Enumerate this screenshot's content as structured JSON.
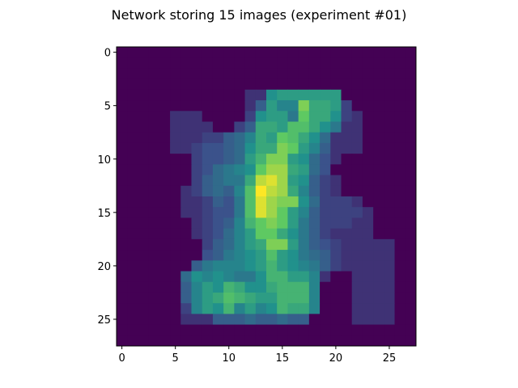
{
  "chart_data": {
    "type": "heatmap",
    "title": "Network storing 15 images (experiment #01)",
    "rows": 28,
    "cols": 28,
    "xlim": [
      -0.5,
      27.5
    ],
    "ylim": [
      27.5,
      -0.5
    ],
    "y_axis_inverted": true,
    "grid": false,
    "colormap": "viridis",
    "x_ticks": [
      0,
      5,
      10,
      15,
      20,
      25
    ],
    "y_ticks": [
      0,
      5,
      10,
      15,
      20,
      25
    ],
    "value_range": [
      0,
      1
    ],
    "values": [
      [
        0,
        0,
        0,
        0,
        0,
        0,
        0,
        0,
        0,
        0,
        0,
        0,
        0,
        0,
        0,
        0,
        0,
        0,
        0,
        0,
        0,
        0,
        0,
        0,
        0,
        0,
        0,
        0
      ],
      [
        0,
        0,
        0,
        0,
        0,
        0,
        0,
        0,
        0,
        0,
        0,
        0,
        0,
        0,
        0,
        0,
        0,
        0,
        0,
        0,
        0,
        0,
        0,
        0,
        0,
        0,
        0,
        0
      ],
      [
        0,
        0,
        0,
        0,
        0,
        0,
        0,
        0,
        0,
        0,
        0,
        0,
        0,
        0,
        0,
        0,
        0,
        0,
        0,
        0,
        0,
        0,
        0,
        0,
        0,
        0,
        0,
        0
      ],
      [
        0,
        0,
        0,
        0,
        0,
        0,
        0,
        0,
        0,
        0,
        0,
        0,
        0,
        0,
        0,
        0,
        0,
        0,
        0,
        0,
        0,
        0,
        0,
        0,
        0,
        0,
        0,
        0
      ],
      [
        0,
        0,
        0,
        0,
        0,
        0,
        0,
        0,
        0,
        0,
        0,
        0,
        0.15,
        0.15,
        0.5,
        0.55,
        0.55,
        0.55,
        0.55,
        0.55,
        0.55,
        0,
        0,
        0,
        0,
        0,
        0,
        0
      ],
      [
        0,
        0,
        0,
        0,
        0,
        0,
        0,
        0,
        0,
        0,
        0,
        0,
        0.15,
        0.3,
        0.55,
        0.45,
        0.45,
        0.8,
        0.6,
        0.6,
        0.55,
        0.2,
        0,
        0,
        0,
        0,
        0,
        0
      ],
      [
        0,
        0,
        0,
        0,
        0,
        0.15,
        0.15,
        0.15,
        0,
        0,
        0,
        0,
        0.2,
        0.5,
        0.55,
        0.55,
        0.4,
        0.75,
        0.6,
        0.6,
        0.5,
        0.2,
        0.15,
        0,
        0,
        0,
        0,
        0
      ],
      [
        0,
        0,
        0,
        0,
        0,
        0.15,
        0.15,
        0.15,
        0.15,
        0,
        0,
        0.2,
        0.3,
        0.6,
        0.6,
        0.55,
        0.7,
        0.7,
        0.6,
        0.5,
        0.4,
        0.15,
        0.15,
        0,
        0,
        0,
        0,
        0
      ],
      [
        0,
        0,
        0,
        0,
        0,
        0.15,
        0.15,
        0.15,
        0.2,
        0.2,
        0.3,
        0.35,
        0.45,
        0.6,
        0.55,
        0.75,
        0.7,
        0.6,
        0.5,
        0.35,
        0.15,
        0.15,
        0.15,
        0,
        0,
        0,
        0,
        0
      ],
      [
        0,
        0,
        0,
        0,
        0,
        0.15,
        0.15,
        0.2,
        0.25,
        0.25,
        0.3,
        0.35,
        0.5,
        0.6,
        0.6,
        0.8,
        0.75,
        0.55,
        0.45,
        0.3,
        0.15,
        0.15,
        0.15,
        0,
        0,
        0,
        0,
        0
      ],
      [
        0,
        0,
        0,
        0,
        0,
        0,
        0,
        0.2,
        0.25,
        0.25,
        0.3,
        0.35,
        0.55,
        0.65,
        0.8,
        0.8,
        0.55,
        0.5,
        0.35,
        0.25,
        0.15,
        0,
        0,
        0,
        0,
        0,
        0,
        0
      ],
      [
        0,
        0,
        0,
        0,
        0,
        0,
        0,
        0.2,
        0.25,
        0.35,
        0.4,
        0.45,
        0.5,
        0.75,
        0.85,
        0.85,
        0.6,
        0.55,
        0.35,
        0.25,
        0,
        0,
        0,
        0,
        0,
        0,
        0,
        0
      ],
      [
        0,
        0,
        0,
        0,
        0,
        0,
        0,
        0.2,
        0.3,
        0.35,
        0.4,
        0.4,
        0.6,
        0.9,
        0.95,
        0.85,
        0.55,
        0.5,
        0.3,
        0.2,
        0.15,
        0,
        0,
        0,
        0,
        0,
        0,
        0
      ],
      [
        0,
        0,
        0,
        0,
        0,
        0,
        0.15,
        0.2,
        0.3,
        0.35,
        0.3,
        0.45,
        0.7,
        1.0,
        0.9,
        0.85,
        0.6,
        0.45,
        0.3,
        0.2,
        0.15,
        0,
        0,
        0,
        0,
        0,
        0,
        0
      ],
      [
        0,
        0,
        0,
        0,
        0,
        0,
        0.15,
        0.15,
        0.2,
        0.3,
        0.25,
        0.4,
        0.7,
        0.95,
        0.85,
        0.8,
        0.8,
        0.5,
        0.35,
        0.2,
        0.2,
        0.2,
        0.15,
        0,
        0,
        0,
        0,
        0
      ],
      [
        0,
        0,
        0,
        0,
        0,
        0,
        0.15,
        0.15,
        0.2,
        0.25,
        0.25,
        0.4,
        0.7,
        0.95,
        0.85,
        0.75,
        0.55,
        0.45,
        0.3,
        0.2,
        0.2,
        0.2,
        0.2,
        0.15,
        0,
        0,
        0,
        0
      ],
      [
        0,
        0,
        0,
        0,
        0,
        0,
        0,
        0.15,
        0.2,
        0.25,
        0.3,
        0.45,
        0.65,
        0.75,
        0.8,
        0.75,
        0.55,
        0.4,
        0.3,
        0.2,
        0.2,
        0.2,
        0.15,
        0.15,
        0,
        0,
        0,
        0
      ],
      [
        0,
        0,
        0,
        0,
        0,
        0,
        0,
        0.15,
        0.2,
        0.25,
        0.35,
        0.45,
        0.55,
        0.75,
        0.75,
        0.6,
        0.5,
        0.4,
        0.3,
        0.2,
        0.15,
        0.15,
        0.15,
        0.15,
        0,
        0,
        0,
        0
      ],
      [
        0,
        0,
        0,
        0,
        0,
        0,
        0,
        0,
        0.2,
        0.3,
        0.35,
        0.45,
        0.55,
        0.6,
        0.8,
        0.8,
        0.55,
        0.4,
        0.3,
        0.25,
        0.2,
        0.15,
        0.15,
        0.15,
        0.15,
        0.15,
        0,
        0
      ],
      [
        0,
        0,
        0,
        0,
        0,
        0,
        0,
        0,
        0.25,
        0.3,
        0.4,
        0.45,
        0.5,
        0.55,
        0.7,
        0.55,
        0.5,
        0.4,
        0.35,
        0.3,
        0.2,
        0.15,
        0.15,
        0.15,
        0.15,
        0.15,
        0,
        0
      ],
      [
        0,
        0,
        0,
        0,
        0,
        0,
        0,
        0.3,
        0.4,
        0.45,
        0.45,
        0.45,
        0.5,
        0.55,
        0.65,
        0.55,
        0.5,
        0.45,
        0.4,
        0.3,
        0.2,
        0.15,
        0.15,
        0.15,
        0.15,
        0.15,
        0,
        0
      ],
      [
        0,
        0,
        0,
        0,
        0,
        0,
        0.35,
        0.5,
        0.45,
        0.5,
        0.45,
        0.4,
        0.4,
        0.5,
        0.65,
        0.65,
        0.55,
        0.55,
        0.45,
        0.15,
        0,
        0,
        0.15,
        0.15,
        0.15,
        0.15,
        0,
        0
      ],
      [
        0,
        0,
        0,
        0,
        0,
        0,
        0.3,
        0.45,
        0.55,
        0.5,
        0.65,
        0.6,
        0.5,
        0.5,
        0.6,
        0.65,
        0.65,
        0.65,
        0.45,
        0,
        0,
        0,
        0.15,
        0.15,
        0.15,
        0.15,
        0,
        0
      ],
      [
        0,
        0,
        0,
        0,
        0,
        0,
        0.3,
        0.45,
        0.55,
        0.6,
        0.7,
        0.65,
        0.6,
        0.55,
        0.55,
        0.65,
        0.65,
        0.65,
        0.45,
        0,
        0,
        0,
        0.15,
        0.15,
        0.15,
        0.15,
        0,
        0
      ],
      [
        0,
        0,
        0,
        0,
        0,
        0,
        0.2,
        0.45,
        0.55,
        0.5,
        0.65,
        0.45,
        0.55,
        0.45,
        0.5,
        0.65,
        0.6,
        0.6,
        0.45,
        0,
        0,
        0,
        0.15,
        0.15,
        0.15,
        0.15,
        0,
        0
      ],
      [
        0,
        0,
        0,
        0,
        0,
        0,
        0.15,
        0.15,
        0.15,
        0.3,
        0.3,
        0.3,
        0.35,
        0.3,
        0.3,
        0.35,
        0.3,
        0.3,
        0,
        0,
        0,
        0,
        0.15,
        0.15,
        0.15,
        0.15,
        0,
        0
      ],
      [
        0,
        0,
        0,
        0,
        0,
        0,
        0,
        0,
        0,
        0,
        0,
        0,
        0,
        0,
        0,
        0,
        0,
        0,
        0,
        0,
        0,
        0,
        0,
        0,
        0,
        0,
        0,
        0
      ],
      [
        0,
        0,
        0,
        0,
        0,
        0,
        0,
        0,
        0,
        0,
        0,
        0,
        0,
        0,
        0,
        0,
        0,
        0,
        0,
        0,
        0,
        0,
        0,
        0,
        0,
        0,
        0,
        0
      ]
    ]
  }
}
